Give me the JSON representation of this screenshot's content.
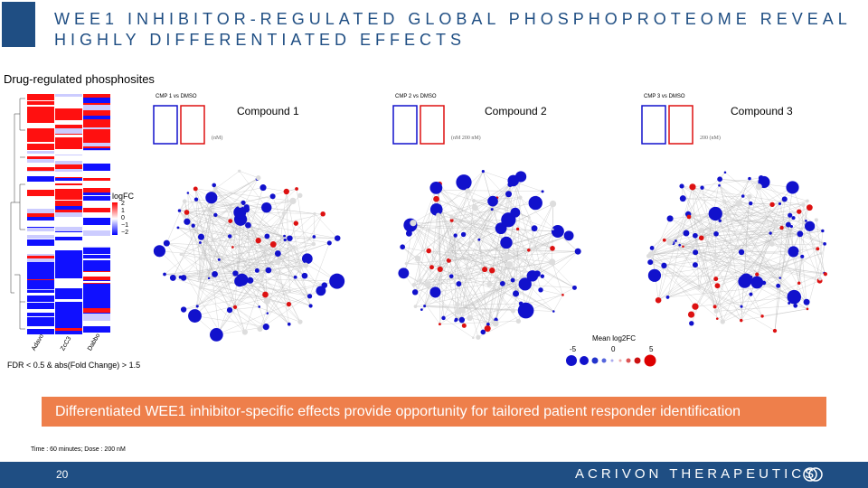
{
  "slide": {
    "title_line1": "WEE1 INHIBITOR-REGULATED GLOBAL PHOSPHOPROTEOME REVEAL",
    "title_line2": "HIGHLY DIFFERENTIATED EFFECTS",
    "subtitle": "Drug-regulated phosphosites",
    "heatmap": {
      "legend_title": "logFC",
      "legend_ticks": [
        "2",
        "1",
        "0",
        "−1",
        "−2"
      ],
      "column_labels": [
        "Adavo",
        "ZcC3",
        "Dabbo"
      ]
    },
    "fdr_note": "FDR < 0.5 & abs(Fold Change) > 1.5",
    "networks": [
      {
        "label": "Compound 1",
        "inset": "CMP 1 vs DMSO",
        "dose": "(nM)"
      },
      {
        "label": "Compound 2",
        "inset": "CMP 2 vs DMSO",
        "dose": "(nM 200 nM)"
      },
      {
        "label": "Compound 3",
        "inset": "CMP 3 vs DMSO",
        "dose": "200 (nM)"
      }
    ],
    "node_legend": {
      "title": "Mean log2FC",
      "ticks": [
        "-5",
        "0",
        "5"
      ]
    },
    "banner": "Differentiated WEE1 inhibitor-specific effects provide opportunity for tailored patient responder identification",
    "footnote": "Time : 60 minutes; Dose : 200 nM",
    "page_number": "20",
    "brand": "ACRIVON THERAPEUTICS",
    "colors": {
      "navy": "#1f4e83",
      "orange": "#ee7f4b",
      "red": "#e00000",
      "blue": "#1111cc"
    }
  }
}
